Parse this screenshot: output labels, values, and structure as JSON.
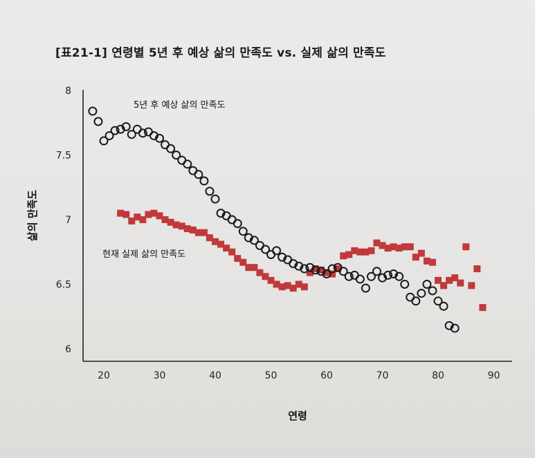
{
  "page": {
    "title": "[표21-1] 연령별 5년 후 예상 삶의 만족도 vs. 실제 삶의 만족도"
  },
  "chart_data": {
    "type": "scatter",
    "title": "[표21-1] 연령별 5년 후 예상 삶의 만족도 vs. 실제 삶의 만족도",
    "xlabel": "연령",
    "ylabel": "삶의 만족도",
    "xlim": [
      20,
      90
    ],
    "ylim": [
      6,
      8
    ],
    "x_ticks": [
      "20",
      "30",
      "40",
      "50",
      "60",
      "70",
      "80",
      "90"
    ],
    "y_ticks": [
      "6",
      "6.5",
      "7",
      "7.5",
      "8"
    ],
    "grid": false,
    "colors": {
      "expected": "#1a1a1a",
      "current": "#c0393b"
    },
    "series": [
      {
        "name": "5년 후 예상 삶의 만족도",
        "marker": "open-circle",
        "x": [
          18,
          19,
          20,
          21,
          22,
          23,
          24,
          25,
          26,
          27,
          28,
          29,
          30,
          31,
          32,
          33,
          34,
          35,
          36,
          37,
          38,
          39,
          40,
          41,
          42,
          43,
          44,
          45,
          46,
          47,
          48,
          49,
          50,
          51,
          52,
          53,
          54,
          55,
          56,
          57,
          58,
          59,
          60,
          61,
          62,
          63,
          64,
          65,
          66,
          67,
          68,
          69,
          70,
          71,
          72,
          73,
          74,
          75,
          76,
          77,
          78,
          79,
          80,
          81,
          82,
          83
        ],
        "y": [
          7.84,
          7.76,
          7.61,
          7.65,
          7.69,
          7.7,
          7.72,
          7.66,
          7.7,
          7.67,
          7.68,
          7.65,
          7.63,
          7.58,
          7.55,
          7.5,
          7.46,
          7.43,
          7.38,
          7.35,
          7.3,
          7.22,
          7.16,
          7.05,
          7.03,
          7.0,
          6.97,
          6.91,
          6.86,
          6.84,
          6.8,
          6.77,
          6.73,
          6.76,
          6.71,
          6.69,
          6.66,
          6.64,
          6.62,
          6.63,
          6.61,
          6.6,
          6.58,
          6.62,
          6.63,
          6.6,
          6.56,
          6.57,
          6.54,
          6.47,
          6.56,
          6.6,
          6.55,
          6.57,
          6.58,
          6.56,
          6.5,
          6.4,
          6.37,
          6.43,
          6.5,
          6.45,
          6.37,
          6.33,
          6.18,
          6.16
        ]
      },
      {
        "name": "현재 실제 삶의 만족도",
        "marker": "filled-square",
        "x": [
          23,
          24,
          25,
          26,
          27,
          28,
          29,
          30,
          31,
          32,
          33,
          34,
          35,
          36,
          37,
          38,
          39,
          40,
          41,
          42,
          43,
          44,
          45,
          46,
          47,
          48,
          49,
          50,
          51,
          52,
          53,
          54,
          55,
          56,
          57,
          58,
          59,
          60,
          61,
          62,
          63,
          64,
          65,
          66,
          67,
          68,
          69,
          70,
          71,
          72,
          73,
          74,
          75,
          76,
          77,
          78,
          79,
          80,
          81,
          82,
          83,
          84,
          85,
          86,
          87,
          88
        ],
        "y": [
          7.05,
          7.04,
          6.99,
          7.02,
          7.0,
          7.04,
          7.05,
          7.03,
          7.0,
          6.98,
          6.96,
          6.95,
          6.93,
          6.92,
          6.9,
          6.9,
          6.86,
          6.83,
          6.81,
          6.78,
          6.75,
          6.7,
          6.67,
          6.63,
          6.63,
          6.59,
          6.56,
          6.53,
          6.5,
          6.48,
          6.49,
          6.47,
          6.5,
          6.48,
          6.59,
          6.62,
          6.61,
          6.59,
          6.58,
          6.62,
          6.72,
          6.73,
          6.76,
          6.75,
          6.75,
          6.76,
          6.82,
          6.8,
          6.78,
          6.79,
          6.78,
          6.79,
          6.79,
          6.71,
          6.74,
          6.68,
          6.67,
          6.53,
          6.49,
          6.53,
          6.55,
          6.51,
          6.79,
          6.49,
          6.62,
          6.32
        ]
      }
    ],
    "annotations": [
      "5년 후 예상 삶의 만족도",
      "현재 실제 삶의 만족도"
    ]
  }
}
